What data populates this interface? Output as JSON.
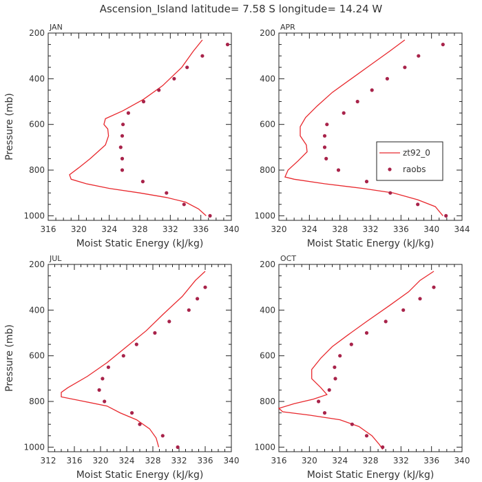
{
  "figure": {
    "title": "Ascension_Island  latitude= 7.58 S longitude= 14.24 W"
  },
  "chart_data": [
    {
      "type": "line",
      "panel": "JAN",
      "xlabel": "Moist Static Energy (kJ/kg)",
      "ylabel": "Pressure (mb)",
      "xlim": [
        316,
        340
      ],
      "ylim": [
        1020,
        200
      ],
      "xticks": [
        316,
        320,
        324,
        328,
        332,
        336,
        340
      ],
      "yticks": [
        200,
        400,
        600,
        800,
        1000
      ],
      "series": [
        {
          "kind": "line",
          "color": "#e8272c",
          "points": [
            [
              336.2,
              230
            ],
            [
              335,
              280
            ],
            [
              333.5,
              350
            ],
            [
              331,
              430
            ],
            [
              328.5,
              490
            ],
            [
              325.8,
              540
            ],
            [
              323.5,
              575
            ],
            [
              323.3,
              600
            ],
            [
              323.8,
              620
            ],
            [
              323.9,
              650
            ],
            [
              323.5,
              690
            ],
            [
              322.5,
              720
            ],
            [
              321.5,
              750
            ],
            [
              320,
              790
            ],
            [
              318.8,
              820
            ],
            [
              319,
              840
            ],
            [
              321,
              860
            ],
            [
              324,
              880
            ],
            [
              328,
              900
            ],
            [
              331.5,
              920
            ],
            [
              334,
              940
            ],
            [
              335.7,
              970
            ],
            [
              336.7,
              1000
            ]
          ]
        },
        {
          "kind": "scatter",
          "color": "#a8234a",
          "points": [
            [
              339.5,
              250
            ],
            [
              336.2,
              300
            ],
            [
              334.2,
              350
            ],
            [
              332.5,
              400
            ],
            [
              330.5,
              450
            ],
            [
              328.5,
              500
            ],
            [
              326.5,
              550
            ],
            [
              325.8,
              600
            ],
            [
              325.7,
              650
            ],
            [
              325.5,
              700
            ],
            [
              325.7,
              750
            ],
            [
              325.7,
              800
            ],
            [
              328.4,
              850
            ],
            [
              331.5,
              900
            ],
            [
              333.8,
              950
            ],
            [
              337.2,
              1000
            ]
          ]
        }
      ]
    },
    {
      "type": "line",
      "panel": "APR",
      "xlabel": "Moist Static Energy (kJ/kg)",
      "ylabel": "",
      "xlim": [
        320,
        344
      ],
      "ylim": [
        1020,
        200
      ],
      "xticks": [
        320,
        324,
        328,
        332,
        336,
        340,
        344
      ],
      "yticks": [
        200,
        400,
        600,
        800,
        1000
      ],
      "legend": {
        "placement": "right",
        "entries": [
          "zt92_0",
          "raobs"
        ]
      },
      "series": [
        {
          "name": "zt92_0",
          "kind": "line",
          "color": "#e8272c",
          "points": [
            [
              336.5,
              230
            ],
            [
              334.5,
              280
            ],
            [
              332,
              340
            ],
            [
              329.5,
              400
            ],
            [
              327,
              460
            ],
            [
              325,
              520
            ],
            [
              323.5,
              570
            ],
            [
              322.8,
              610
            ],
            [
              322.8,
              650
            ],
            [
              323.6,
              690
            ],
            [
              323.7,
              720
            ],
            [
              322.5,
              760
            ],
            [
              321.2,
              800
            ],
            [
              320.8,
              830
            ],
            [
              322,
              840
            ],
            [
              326,
              860
            ],
            [
              331,
              880
            ],
            [
              335,
              900
            ],
            [
              338.2,
              930
            ],
            [
              340.5,
              960
            ],
            [
              341.5,
              1000
            ]
          ]
        },
        {
          "name": "raobs",
          "kind": "scatter",
          "color": "#a8234a",
          "points": [
            [
              341.5,
              250
            ],
            [
              338.3,
              300
            ],
            [
              336.5,
              350
            ],
            [
              334.2,
              400
            ],
            [
              332.2,
              450
            ],
            [
              330.3,
              500
            ],
            [
              328.5,
              550
            ],
            [
              326.3,
              600
            ],
            [
              326,
              650
            ],
            [
              326,
              700
            ],
            [
              326.2,
              750
            ],
            [
              327.8,
              800
            ],
            [
              331.5,
              850
            ],
            [
              334.6,
              900
            ],
            [
              338.2,
              950
            ],
            [
              341.9,
              1000
            ]
          ]
        }
      ]
    },
    {
      "type": "line",
      "panel": "JUL",
      "xlabel": "Moist Static Energy (kJ/kg)",
      "ylabel": "Pressure (mb)",
      "xlim": [
        312,
        340
      ],
      "ylim": [
        1020,
        200
      ],
      "xticks": [
        312,
        316,
        320,
        324,
        328,
        332,
        336,
        340
      ],
      "yticks": [
        200,
        400,
        600,
        800,
        1000
      ],
      "series": [
        {
          "kind": "line",
          "color": "#e8272c",
          "points": [
            [
              336,
              230
            ],
            [
              334.5,
              270
            ],
            [
              332.5,
              340
            ],
            [
              329.5,
              420
            ],
            [
              327,
              490
            ],
            [
              324,
              560
            ],
            [
              321,
              630
            ],
            [
              318,
              690
            ],
            [
              315,
              740
            ],
            [
              314,
              760
            ],
            [
              314,
              780
            ],
            [
              317.5,
              800
            ],
            [
              321,
              820
            ],
            [
              323,
              850
            ],
            [
              325.5,
              880
            ],
            [
              327.5,
              920
            ],
            [
              328.5,
              960
            ],
            [
              328.9,
              1000
            ]
          ]
        },
        {
          "kind": "scatter",
          "color": "#a8234a",
          "points": [
            [
              336,
              300
            ],
            [
              334.8,
              350
            ],
            [
              333.5,
              400
            ],
            [
              330.5,
              450
            ],
            [
              328.3,
              500
            ],
            [
              325.5,
              550
            ],
            [
              323.5,
              600
            ],
            [
              321.2,
              650
            ],
            [
              320.3,
              700
            ],
            [
              319.8,
              750
            ],
            [
              320.6,
              800
            ],
            [
              324.8,
              850
            ],
            [
              326,
              900
            ],
            [
              329.5,
              950
            ],
            [
              331.8,
              1000
            ]
          ]
        }
      ]
    },
    {
      "type": "line",
      "panel": "OCT",
      "xlabel": "Moist Static Energy (kJ/kg)",
      "ylabel": "",
      "xlim": [
        316,
        340
      ],
      "ylim": [
        1020,
        200
      ],
      "xticks": [
        316,
        320,
        324,
        328,
        332,
        336,
        340
      ],
      "yticks": [
        200,
        400,
        600,
        800,
        1000
      ],
      "series": [
        {
          "kind": "line",
          "color": "#e8272c",
          "points": [
            [
              336.3,
              230
            ],
            [
              334.5,
              270
            ],
            [
              333,
              320
            ],
            [
              330.5,
              380
            ],
            [
              327.5,
              450
            ],
            [
              325,
              510
            ],
            [
              323,
              560
            ],
            [
              321.5,
              610
            ],
            [
              320.3,
              660
            ],
            [
              320.3,
              700
            ],
            [
              321.5,
              740
            ],
            [
              322.3,
              770
            ],
            [
              320.5,
              790
            ],
            [
              318,
              810
            ],
            [
              316,
              830
            ],
            [
              316.5,
              845
            ],
            [
              320,
              860
            ],
            [
              324,
              880
            ],
            [
              326.5,
              910
            ],
            [
              328.2,
              950
            ],
            [
              329.2,
              990
            ],
            [
              329.6,
              1010
            ]
          ]
        },
        {
          "kind": "scatter",
          "color": "#a8234a",
          "points": [
            [
              336.3,
              300
            ],
            [
              334.5,
              350
            ],
            [
              332.3,
              400
            ],
            [
              330,
              450
            ],
            [
              327.5,
              500
            ],
            [
              325.5,
              550
            ],
            [
              324,
              600
            ],
            [
              323.3,
              650
            ],
            [
              323.4,
              700
            ],
            [
              322.6,
              750
            ],
            [
              321.2,
              800
            ],
            [
              322,
              850
            ],
            [
              325.6,
              900
            ],
            [
              327.5,
              950
            ],
            [
              329.6,
              1000
            ]
          ]
        }
      ]
    }
  ]
}
